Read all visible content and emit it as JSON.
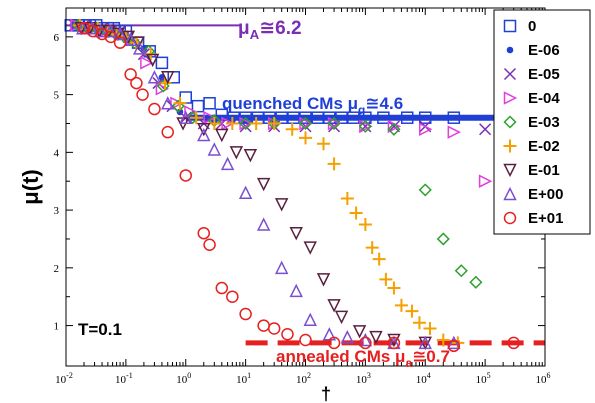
{
  "chart_data": {
    "type": "scatter",
    "xscale": "log",
    "xlim": [
      0.01,
      1000000
    ],
    "ylim": [
      0.3,
      6.5
    ],
    "ylabel": "μ(t)",
    "yticks": [
      1,
      2,
      3,
      4,
      5,
      6
    ],
    "xticks": [
      {
        "base": "10",
        "exp": "-2",
        "value": 0.01
      },
      {
        "base": "10",
        "exp": "-1",
        "value": 0.1
      },
      {
        "base": "10",
        "exp": "0",
        "value": 1
      },
      {
        "base": "10",
        "exp": "1",
        "value": 10
      },
      {
        "base": "10",
        "exp": "2",
        "value": 100
      },
      {
        "base": "10",
        "exp": "3",
        "value": 1000
      },
      {
        "base": "10",
        "exp": "4",
        "value": 10000
      },
      {
        "base": "10",
        "exp": "5",
        "value": 100000
      },
      {
        "base": "10",
        "exp": "6",
        "value": 1000000
      }
    ],
    "legend_position": "top-right",
    "series": [
      {
        "name": "0",
        "marker": "square",
        "color": "#1f3fd6",
        "x": [
          0.012,
          0.016,
          0.02,
          0.025,
          0.032,
          0.04,
          0.05,
          0.063,
          0.079,
          0.1,
          0.16,
          0.25,
          0.4,
          0.63,
          1,
          1.6,
          2.5,
          4,
          6.3,
          10,
          16,
          25,
          40,
          63,
          100,
          160,
          250,
          400,
          630,
          1000,
          2000,
          5000,
          10000,
          30000
        ],
        "y": [
          6.2,
          6.2,
          6.2,
          6.2,
          6.2,
          6.15,
          6.15,
          6.15,
          6.1,
          6.1,
          5.9,
          5.75,
          5.55,
          5.3,
          4.95,
          4.8,
          4.85,
          4.65,
          4.6,
          4.6,
          4.6,
          4.6,
          4.6,
          4.6,
          4.6,
          4.6,
          4.6,
          4.6,
          4.6,
          4.6,
          4.6,
          4.6,
          4.6,
          4.6
        ]
      },
      {
        "name": "E-06",
        "marker": "dot",
        "color": "#1f3fd6",
        "x": [
          0.013,
          0.018,
          0.025,
          0.035,
          0.05,
          0.07,
          0.1,
          0.2,
          0.4,
          0.8,
          1.5,
          3,
          6,
          10,
          30
        ],
        "y": [
          6.2,
          6.2,
          6.2,
          6.15,
          6.15,
          6.1,
          6.05,
          5.8,
          5.3,
          4.7,
          4.6,
          4.55,
          4.55,
          4.55,
          4.55
        ]
      },
      {
        "name": "E-05",
        "marker": "x",
        "color": "#7b2db5",
        "x": [
          0.014,
          0.02,
          0.028,
          0.04,
          0.056,
          0.08,
          0.11,
          0.2,
          0.35,
          0.6,
          1,
          2,
          4,
          10,
          30,
          100,
          300,
          1000,
          3000,
          10000,
          100000
        ],
        "y": [
          6.2,
          6.2,
          6.15,
          6.15,
          6.1,
          6.1,
          6.0,
          5.7,
          5.2,
          4.8,
          4.6,
          4.5,
          4.5,
          4.45,
          4.45,
          4.45,
          4.45,
          4.45,
          4.45,
          4.45,
          4.4
        ]
      },
      {
        "name": "E-04",
        "marker": "tri-right",
        "color": "#e040e0",
        "x": [
          0.015,
          0.022,
          0.03,
          0.045,
          0.063,
          0.09,
          0.13,
          0.22,
          0.4,
          0.7,
          1.2,
          2.5,
          5,
          10,
          30,
          100,
          300,
          1000,
          3000,
          10000,
          30000,
          100000
        ],
        "y": [
          6.2,
          6.15,
          6.15,
          6.1,
          6.1,
          6.05,
          5.95,
          5.55,
          5.1,
          4.85,
          4.7,
          4.6,
          4.5,
          4.5,
          4.5,
          4.5,
          4.5,
          4.45,
          4.45,
          4.4,
          4.35,
          3.5
        ]
      },
      {
        "name": "E-03",
        "marker": "diamond",
        "color": "#2ea02e",
        "x": [
          0.016,
          0.023,
          0.032,
          0.047,
          0.067,
          0.095,
          0.14,
          0.24,
          0.42,
          0.75,
          1.3,
          3,
          10,
          30,
          100,
          300,
          1000,
          3000,
          10000,
          20000,
          40000,
          70000
        ],
        "y": [
          6.2,
          6.15,
          6.15,
          6.1,
          6.05,
          6.0,
          5.9,
          5.75,
          5.15,
          4.8,
          4.6,
          4.55,
          4.5,
          4.5,
          4.5,
          4.5,
          4.45,
          4.4,
          3.35,
          2.5,
          1.95,
          1.75
        ]
      },
      {
        "name": "E-02",
        "marker": "plus",
        "color": "#f5a000",
        "x": [
          0.017,
          0.024,
          0.034,
          0.05,
          0.07,
          0.1,
          0.15,
          0.26,
          0.45,
          0.8,
          1.5,
          3,
          6,
          15,
          30,
          60,
          100,
          200,
          300,
          500,
          700,
          1000,
          1300,
          1700,
          2200,
          3000,
          4000,
          6000,
          8000,
          12000,
          20000,
          35000
        ],
        "y": [
          6.2,
          6.15,
          6.15,
          6.1,
          6.05,
          6.0,
          5.9,
          5.7,
          5.2,
          4.85,
          4.6,
          4.5,
          4.5,
          4.5,
          4.5,
          4.4,
          4.25,
          4.15,
          3.8,
          3.2,
          2.95,
          2.75,
          2.35,
          2.15,
          1.8,
          1.65,
          1.35,
          1.25,
          1.05,
          0.95,
          0.75,
          0.7
        ]
      },
      {
        "name": "E-01",
        "marker": "tri-down",
        "color": "#5a1f3f",
        "x": [
          0.018,
          0.025,
          0.036,
          0.052,
          0.074,
          0.11,
          0.16,
          0.28,
          0.5,
          0.9,
          2,
          4,
          7,
          12,
          20,
          40,
          70,
          120,
          200,
          300,
          400,
          800,
          1500,
          3000,
          10000
        ],
        "y": [
          6.15,
          6.15,
          6.1,
          6.1,
          6.05,
          6.0,
          5.9,
          5.6,
          5.3,
          4.5,
          4.4,
          4.3,
          4.0,
          3.95,
          3.45,
          3.1,
          2.6,
          2.35,
          1.8,
          1.35,
          1.15,
          0.9,
          0.8,
          0.75,
          0.7
        ]
      },
      {
        "name": "E+00",
        "marker": "tri-up",
        "color": "#7a4fd0",
        "x": [
          0.019,
          0.027,
          0.038,
          0.055,
          0.08,
          0.12,
          0.17,
          0.3,
          0.5,
          1,
          2,
          3,
          5,
          10,
          20,
          40,
          70,
          120,
          250,
          500,
          1000,
          3000,
          10000,
          30000
        ],
        "y": [
          6.15,
          6.15,
          6.1,
          6.1,
          6.05,
          5.95,
          5.8,
          5.3,
          4.85,
          4.6,
          4.3,
          4.05,
          3.8,
          3.3,
          2.75,
          2.0,
          1.6,
          1.1,
          0.85,
          0.8,
          0.75,
          0.7,
          0.7,
          0.7
        ]
      },
      {
        "name": "E+01",
        "marker": "circle",
        "color": "#e62020",
        "x": [
          0.02,
          0.028,
          0.04,
          0.056,
          0.08,
          0.12,
          0.15,
          0.19,
          0.3,
          0.5,
          1,
          2,
          2.5,
          4,
          6,
          10,
          20,
          30,
          50,
          100,
          300,
          1000,
          3000,
          30000,
          300000
        ],
        "y": [
          6.15,
          6.1,
          6.05,
          6.0,
          5.9,
          5.35,
          5.2,
          5.0,
          4.75,
          4.35,
          3.6,
          2.6,
          2.4,
          1.65,
          1.5,
          1.2,
          1.0,
          0.95,
          0.85,
          0.75,
          0.7,
          0.7,
          0.7,
          0.65,
          0.7
        ]
      }
    ],
    "reference_lines": [
      {
        "label_main": "μ",
        "label_sub": "A",
        "label_value": "≅6.2",
        "y": 6.2,
        "x_from": 0.01,
        "x_to": 8,
        "color": "#7b2db5",
        "style": "solid-thin"
      },
      {
        "label_prefix": "quenched CMs μ",
        "label_sub": "q",
        "label_value": "≅4.6",
        "y": 4.6,
        "x_from": 1,
        "x_to": 1000000,
        "color": "#1f3fd6",
        "style": "solid-thick"
      },
      {
        "label_prefix": "annealed CMs μ",
        "label_sub": "a",
        "label_value": "≅0.7",
        "y": 0.7,
        "x_from": 10,
        "x_to": 1000000,
        "color": "#e62020",
        "style": "dashed-thick"
      }
    ],
    "annotations": [
      {
        "text": "T=0.1"
      },
      {
        "text": "†"
      }
    ]
  }
}
